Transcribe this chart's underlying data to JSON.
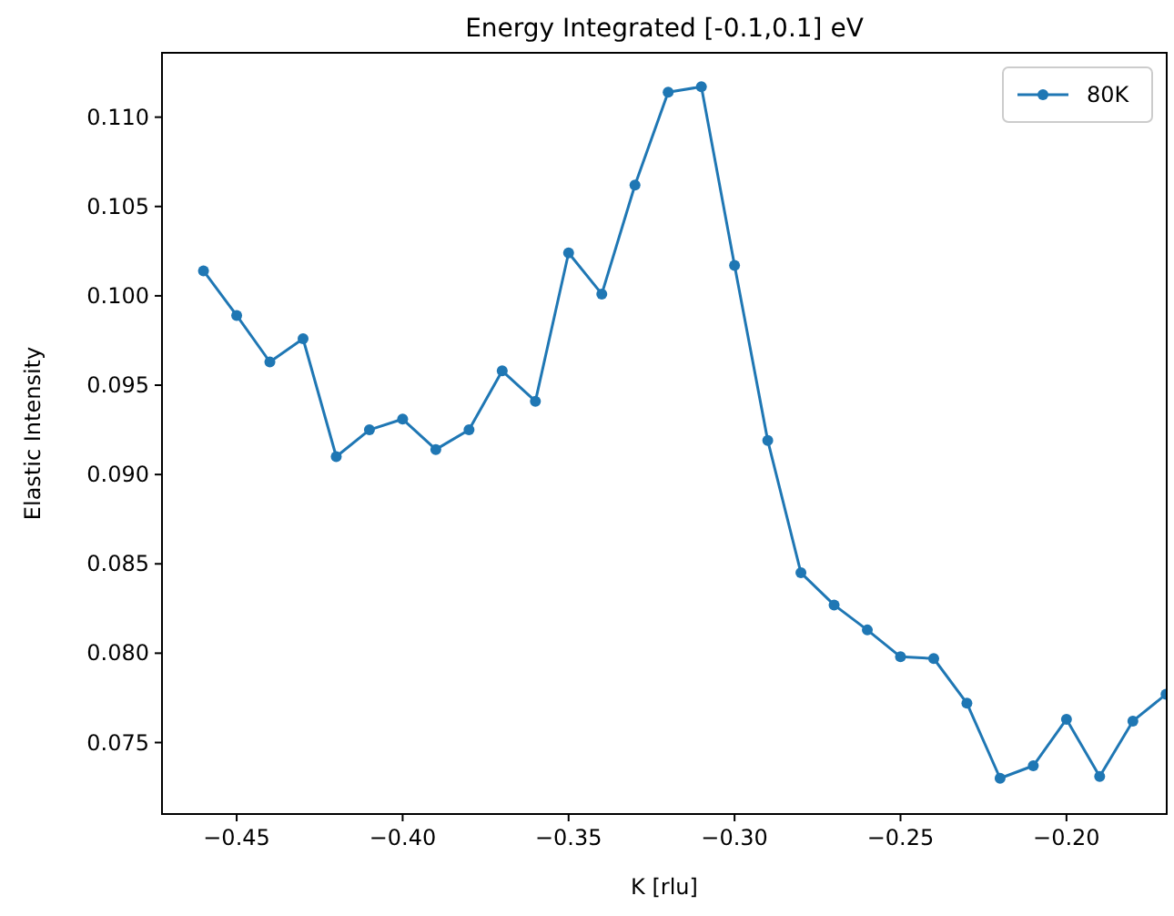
{
  "chart_data": {
    "type": "line",
    "title": "Energy Integrated [-0.1,0.1] eV",
    "xlabel": "K [rlu]",
    "ylabel": "Elastic Intensity",
    "x": [
      -0.46,
      -0.45,
      -0.44,
      -0.43,
      -0.42,
      -0.41,
      -0.4,
      -0.39,
      -0.38,
      -0.37,
      -0.36,
      -0.35,
      -0.34,
      -0.33,
      -0.32,
      -0.31,
      -0.3,
      -0.29,
      -0.28,
      -0.27,
      -0.26,
      -0.25,
      -0.24,
      -0.23,
      -0.22,
      -0.21,
      -0.2,
      -0.19,
      -0.18,
      -0.17
    ],
    "series": [
      {
        "name": "80K",
        "color": "#1f77b4",
        "values": [
          0.1014,
          0.0989,
          0.0963,
          0.0976,
          0.091,
          0.0925,
          0.0931,
          0.0914,
          0.0925,
          0.0958,
          0.0941,
          0.1024,
          0.1001,
          0.1062,
          0.1114,
          0.1117,
          0.1017,
          0.0919,
          0.0845,
          0.0827,
          0.0813,
          0.0798,
          0.0797,
          0.0772,
          0.073,
          0.0737,
          0.0763,
          0.0731,
          0.0762,
          0.0777
        ]
      }
    ],
    "xlim": [
      -0.4725,
      -0.1698
    ],
    "ylim": [
      0.071,
      0.1136
    ],
    "xticks": [
      {
        "value": -0.45,
        "label": "−0.45"
      },
      {
        "value": -0.4,
        "label": "−0.40"
      },
      {
        "value": -0.35,
        "label": "−0.35"
      },
      {
        "value": -0.3,
        "label": "−0.30"
      },
      {
        "value": -0.25,
        "label": "−0.25"
      },
      {
        "value": -0.2,
        "label": "−0.20"
      }
    ],
    "yticks": [
      {
        "value": 0.075,
        "label": "0.075"
      },
      {
        "value": 0.08,
        "label": "0.080"
      },
      {
        "value": 0.085,
        "label": "0.085"
      },
      {
        "value": 0.09,
        "label": "0.090"
      },
      {
        "value": 0.095,
        "label": "0.095"
      },
      {
        "value": 0.1,
        "label": "0.100"
      },
      {
        "value": 0.105,
        "label": "0.105"
      },
      {
        "value": 0.11,
        "label": "0.110"
      }
    ],
    "legend": "top right",
    "marker": "circle",
    "line_style": "solid",
    "grid": false
  }
}
